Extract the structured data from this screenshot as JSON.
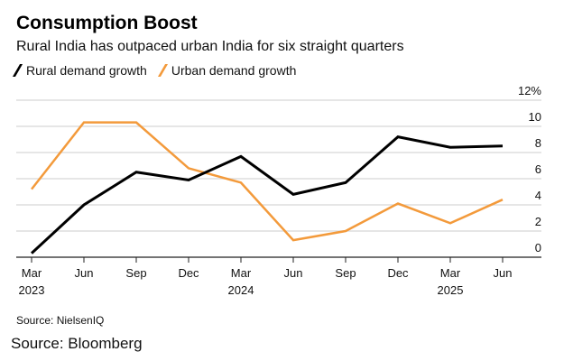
{
  "title": "Consumption Boost",
  "subtitle": "Rural India has outpaced urban India for six straight quarters",
  "source": "Source: NielsenIQ",
  "credit": "Source: Bloomberg",
  "chart_data": {
    "type": "line",
    "x": [
      "Mar 2023",
      "Jun 2023",
      "Sep 2023",
      "Dec 2023",
      "Mar 2024",
      "Jun 2024",
      "Sep 2024",
      "Dec 2024",
      "Mar 2025",
      "Jun 2025"
    ],
    "xtick_labels": [
      [
        "Mar",
        "2023"
      ],
      [
        "Jun",
        ""
      ],
      [
        "Sep",
        ""
      ],
      [
        "Dec",
        ""
      ],
      [
        "Mar",
        "2024"
      ],
      [
        "Jun",
        ""
      ],
      [
        "Sep",
        ""
      ],
      [
        "Dec",
        ""
      ],
      [
        "Mar",
        "2025"
      ],
      [
        "Jun",
        ""
      ]
    ],
    "yticks": [
      "0",
      "2",
      "4",
      "6",
      "8",
      "10",
      "12%"
    ],
    "ylim": [
      0,
      12
    ],
    "grid": true,
    "legend": "top-left",
    "series": [
      {
        "name": "Rural demand growth",
        "color": "#000000",
        "values": [
          0.3,
          4.0,
          6.5,
          5.9,
          7.7,
          4.8,
          5.7,
          9.2,
          8.4,
          8.5
        ]
      },
      {
        "name": "Urban demand growth",
        "color": "#f39a3b",
        "values": [
          5.2,
          10.3,
          10.3,
          6.8,
          5.7,
          1.3,
          2.0,
          4.1,
          2.6,
          4.4
        ]
      }
    ]
  }
}
